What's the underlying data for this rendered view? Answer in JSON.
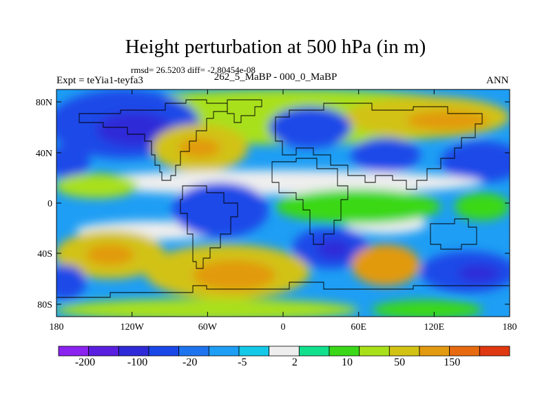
{
  "title": "Height perturbation at 500 hPa (in m)",
  "stats_line": "rmsd= 26.5203 diff= -2.80454e-08",
  "experiment_label": "Expt = teYia1-teyfa3",
  "period_label": "262_5_MaBP - 000_0_MaBP",
  "season_label": "ANN",
  "axes": {
    "lat_ticks": [
      "80N",
      "40N",
      "0",
      "40S",
      "80S"
    ],
    "lon_ticks": [
      "180",
      "120W",
      "60W",
      "0",
      "60E",
      "120E",
      "180"
    ]
  },
  "colorbar": {
    "tick_labels": [
      "-200",
      "-100",
      "-20",
      "-5",
      "2",
      "10",
      "50",
      "150"
    ],
    "colors": [
      "#8a22f0",
      "#5a1ee0",
      "#2e2ad8",
      "#1a48e8",
      "#1e74ee",
      "#1e9ef4",
      "#14c8e8",
      "#eeeeee",
      "#12e08c",
      "#3ad818",
      "#a8e01a",
      "#d2c214",
      "#e29a10",
      "#e86a10",
      "#e03810"
    ]
  }
}
